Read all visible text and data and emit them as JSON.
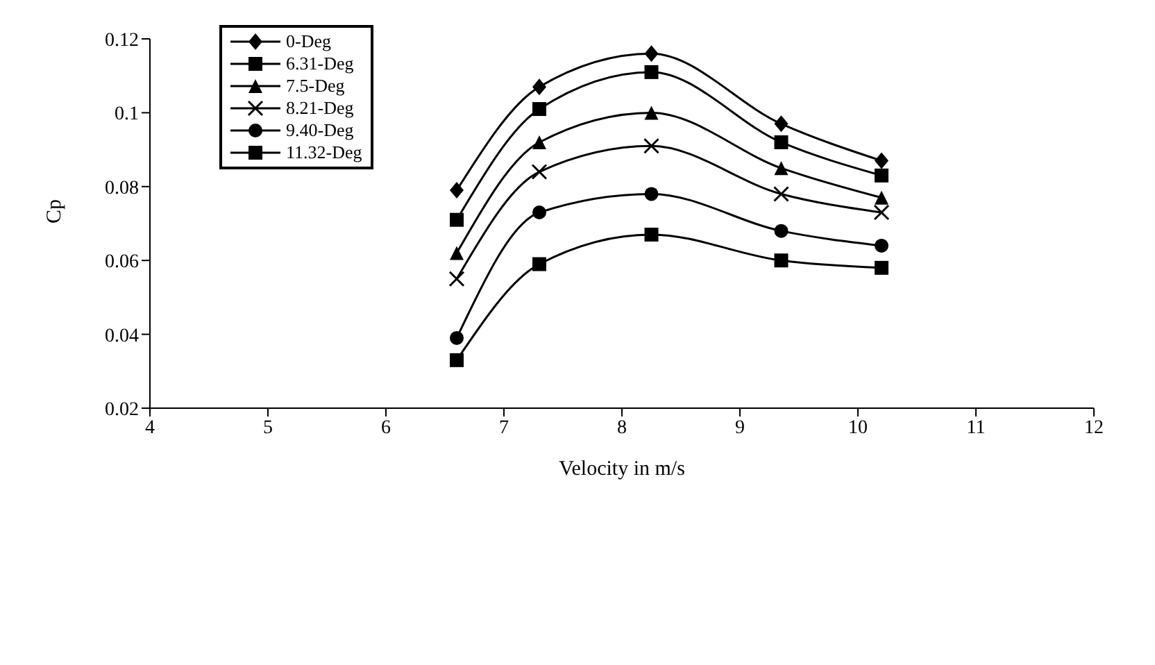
{
  "chart_data": {
    "type": "line",
    "xlabel": "Velocity in m/s",
    "ylabel": "Cp",
    "x": [
      6.6,
      7.3,
      8.25,
      9.35,
      10.2
    ],
    "xlim": [
      4,
      12
    ],
    "xticks": [
      4,
      5,
      6,
      7,
      8,
      9,
      10,
      11,
      12
    ],
    "ylim": [
      0.02,
      0.12
    ],
    "yticks": [
      0.02,
      0.04,
      0.06,
      0.08,
      0.1,
      0.12
    ],
    "grid": false,
    "legend": "top left",
    "line_style": "solid",
    "series": [
      {
        "name": "0-Deg",
        "color": "#000000",
        "marker": "diamond",
        "values": [
          0.079,
          0.107,
          0.116,
          0.097,
          0.087
        ]
      },
      {
        "name": "6.31-Deg",
        "color": "#000000",
        "marker": "square",
        "values": [
          0.071,
          0.101,
          0.111,
          0.092,
          0.083
        ]
      },
      {
        "name": "7.5-Deg",
        "color": "#000000",
        "marker": "triangle",
        "values": [
          0.062,
          0.092,
          0.1,
          0.085,
          0.077
        ]
      },
      {
        "name": "8.21-Deg",
        "color": "#000000",
        "marker": "cross",
        "values": [
          0.055,
          0.084,
          0.091,
          0.078,
          0.073
        ]
      },
      {
        "name": "9.40-Deg",
        "color": "#000000",
        "marker": "circle",
        "values": [
          0.039,
          0.073,
          0.078,
          0.068,
          0.064
        ]
      },
      {
        "name": "11.32-Deg",
        "color": "#000000",
        "marker": "square",
        "values": [
          0.033,
          0.059,
          0.067,
          0.06,
          0.058
        ]
      }
    ]
  }
}
